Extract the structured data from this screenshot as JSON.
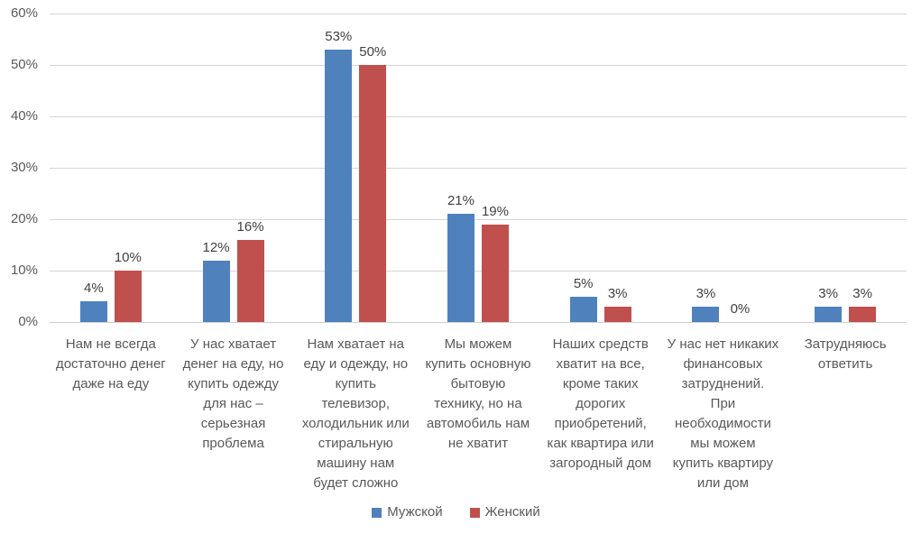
{
  "chart_data": {
    "type": "bar",
    "title": "",
    "xlabel": "",
    "ylabel": "",
    "ylim": [
      0,
      60
    ],
    "ytick_step": 10,
    "ytick_labels": [
      "0%",
      "10%",
      "20%",
      "30%",
      "40%",
      "50%",
      "60%"
    ],
    "grid": true,
    "legend_position": "bottom",
    "value_suffix": "%",
    "categories": [
      "Нам не всегда\nдостаточно денег\nдаже на еду",
      "У нас хватает\nденег на еду, но\nкупить одежду\nдля нас –\nсерьезная\nпроблема",
      "Нам хватает на\nеду и одежду, но\nкупить\nтелевизор,\nхолодильник или\nстиральную\nмашину нам\nбудет сложно",
      "Мы можем\nкупить основную\nбытовую\nтехнику, но на\nавтомобиль нам\nне хватит",
      "Наших средств\nхватит на все,\nкроме таких\nдорогих\nприобретений,\nкак квартира или\nзагородный дом",
      "У нас нет никаких\nфинансовых\nзатруднений.\nПри\nнеобходимости\nмы можем\nкупить квартиру\nили дом",
      "Затрудняюсь\nответить"
    ],
    "series": [
      {
        "name": "Мужской",
        "color": "#4F81BD",
        "values": [
          4,
          12,
          53,
          21,
          5,
          3,
          3
        ]
      },
      {
        "name": "Женский",
        "color": "#C0504D",
        "values": [
          10,
          16,
          50,
          19,
          3,
          0,
          3
        ]
      }
    ],
    "colors": {
      "gridline": "#d6d6d6",
      "axis_text": "#595959",
      "data_label_text": "#404040"
    }
  }
}
